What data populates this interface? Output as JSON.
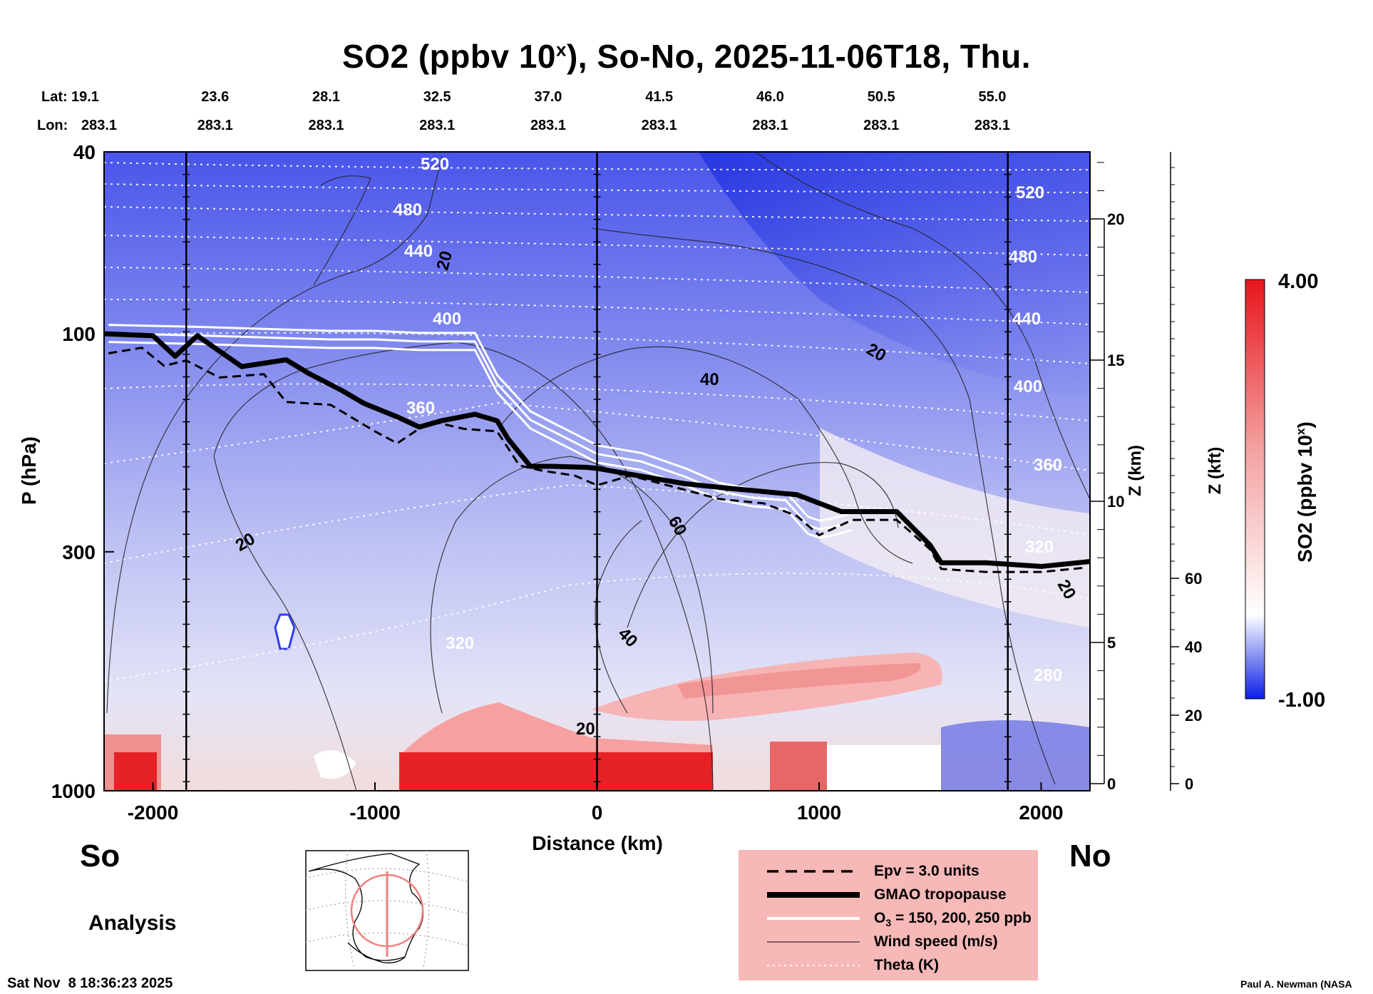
{
  "chart_data": {
    "type": "heatmap",
    "title_main": "SO2 (ppbv 10",
    "title_exp": "x",
    "title_rest": "), So-No, 2025-11-06T18, Thu.",
    "xlabel": "Distance (km)",
    "ylabel": "P (hPa)",
    "zlabel_km": "Z (km)",
    "zlabel_kft": "Z (kft)",
    "colorbar_label_main": "SO2 (ppbv 10",
    "colorbar_label_exp": "x",
    "colorbar_label_end": ")",
    "colorbar_range": [
      -1.0,
      4.0
    ],
    "colorbar_max_label": "4.00",
    "colorbar_min_label": "-1.00",
    "xlim": [
      -2220,
      2220
    ],
    "ylim_hpa": [
      1000,
      40
    ],
    "x_ticks": [
      -2000,
      -1000,
      0,
      1000,
      2000
    ],
    "x_tick_labels": [
      "-2000",
      "-1000",
      "0",
      "1000",
      "2000"
    ],
    "p_ticks": [
      40,
      100,
      300,
      1000
    ],
    "p_tick_labels": [
      "40",
      "100",
      "300",
      "1000"
    ],
    "z_km_ticks": [
      0,
      5,
      10,
      15,
      20
    ],
    "z_km_tick_labels": [
      "0",
      "5",
      "10",
      "15",
      "20"
    ],
    "z_kft_ticks": [
      0,
      20,
      40,
      60
    ],
    "z_kft_tick_labels": [
      "0",
      "20",
      "40",
      "60"
    ],
    "lat_label": "Lat:",
    "lon_label": "Lon:",
    "lat_values": [
      "19.1",
      "23.6",
      "28.1",
      "32.5",
      "37.0",
      "41.5",
      "46.0",
      "50.5",
      "55.0"
    ],
    "lon_values": [
      "283.1",
      "283.1",
      "283.1",
      "283.1",
      "283.1",
      "283.1",
      "283.1",
      "283.1",
      "283.1"
    ],
    "station_distances_km": [
      -2220,
      -1720,
      -1220,
      -720,
      -220,
      280,
      780,
      1280,
      1780
    ],
    "vertical_lines_km": [
      -1850,
      0,
      1850
    ],
    "series": [
      {
        "name": "GMAO tropopause",
        "style": "thick-black",
        "x": [
          -2220,
          -2000,
          -1900,
          -1800,
          -1600,
          -1400,
          -1300,
          -1150,
          -1050,
          -900,
          -800,
          -700,
          -550,
          -450,
          -400,
          -300,
          -200,
          -50,
          0,
          200,
          400,
          600,
          900,
          1100,
          1350,
          1500,
          1550,
          1750,
          2000,
          2220
        ],
        "p": [
          100,
          101,
          112,
          101,
          118,
          114,
          122,
          133,
          142,
          152,
          160,
          155,
          150,
          155,
          170,
          195,
          195,
          196,
          197,
          205,
          213,
          218,
          225,
          245,
          245,
          290,
          317,
          317,
          323,
          315
        ]
      },
      {
        "name": "Epv = 3.0 units",
        "style": "dashed-black",
        "x": [
          -2200,
          -2050,
          -1950,
          -1850,
          -1700,
          -1500,
          -1400,
          -1200,
          -1000,
          -900,
          -750,
          -600,
          -450,
          -350,
          -250,
          -100,
          0,
          150,
          350,
          550,
          750,
          900,
          1000,
          1150,
          1350,
          1500,
          1550,
          1750,
          2000,
          2200
        ],
        "p": [
          108,
          105,
          115,
          112,
          122,
          120,
          138,
          140,
          160,
          170,
          152,
          158,
          160,
          190,
          195,
          200,
          210,
          200,
          212,
          225,
          230,
          245,
          270,
          250,
          250,
          290,
          320,
          325,
          325,
          318
        ]
      },
      {
        "name": "O3 = 150, 200, 250 ppb",
        "style": "white",
        "x": [
          -2200,
          -1800,
          -1500,
          -1200,
          -1000,
          -800,
          -650,
          -550,
          -450,
          -300,
          -100,
          0,
          200,
          400,
          550,
          700,
          850,
          950,
          1000,
          1050,
          1150
        ],
        "p": [
          97,
          98,
          99,
          100,
          100,
          101,
          101,
          101,
          125,
          150,
          168,
          178,
          185,
          200,
          215,
          222,
          225,
          255,
          260,
          258,
          250
        ]
      },
      {
        "name": "Wind speed (m/s)",
        "style": "thin-black",
        "contour_labels": [
          "20",
          "20",
          "20",
          "40",
          "40",
          "60",
          "20",
          "20"
        ]
      },
      {
        "name": "Theta (K)",
        "style": "dotted-white",
        "levels": [
          280,
          320,
          360,
          400,
          440,
          480,
          520
        ]
      }
    ],
    "contour_labels": {
      "theta": [
        "520",
        "480",
        "440",
        "400",
        "360",
        "320",
        "520",
        "480",
        "440",
        "400",
        "360",
        "320",
        "280"
      ],
      "wind": [
        "20",
        "20",
        "40",
        "60",
        "40",
        "20",
        "20",
        "20"
      ]
    },
    "legend_items": [
      {
        "key": "epv",
        "label": "Epv = 3.0 units"
      },
      {
        "key": "trop",
        "label": "GMAO tropopause"
      },
      {
        "key": "o3",
        "label": "O3 = 150, 200, 250 ppb"
      },
      {
        "key": "wind",
        "label": "Wind speed (m/s)"
      },
      {
        "key": "theta",
        "label": "Theta (K)"
      }
    ],
    "legend_o3_main": "O",
    "legend_o3_sub": "3",
    "legend_o3_rest": " = 150, 200, 250 ppb"
  },
  "left_end_label": "So",
  "right_end_label": "No",
  "analysis_label": "Analysis",
  "timestamp": "Sat Nov  8 18:36:23 2025",
  "credit": "Paul A. Newman (NASA",
  "colors": {
    "so2_low": "#0c1ee6",
    "so2_mid": "#ffffff",
    "so2_high": "#e8151b",
    "legend_bg": "#f7b8b8",
    "map_circle": "#f08080"
  }
}
